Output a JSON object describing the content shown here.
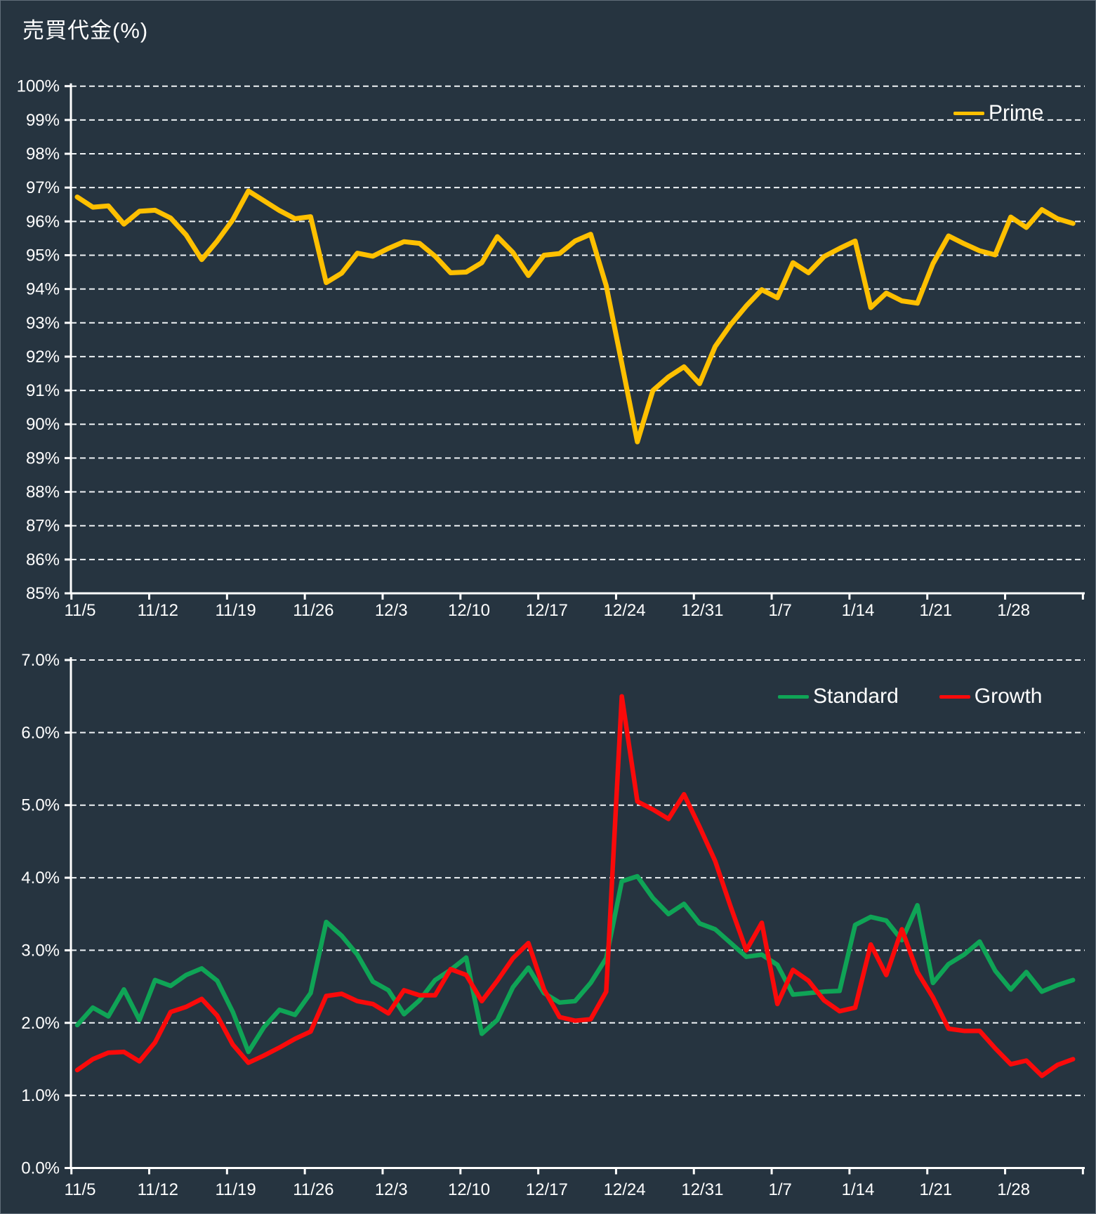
{
  "title": "売買代金(%)",
  "legends": {
    "prime": "Prime",
    "standard": "Standard",
    "growth": "Growth"
  },
  "style": {
    "background_color": "#263440",
    "text_color": "#ffffff",
    "gridline_color": "#edf1f4",
    "axis_color": "#ffffff",
    "prime_color": "#FFC000",
    "standard_color": "#0FA456",
    "growth_color": "#FA0A0A"
  },
  "chart_data": [
    {
      "id": "prime-chart",
      "type": "line",
      "title": "売買代金(%)",
      "legend_entries": [
        {
          "label": "Prime",
          "color": "#FFC000"
        }
      ],
      "legend_position": "top-right",
      "grid": true,
      "x_tick_labels": [
        "11/5",
        "11/12",
        "11/19",
        "11/26",
        "12/3",
        "12/10",
        "12/17",
        "12/24",
        "12/31",
        "1/7",
        "1/14",
        "1/21",
        "1/28"
      ],
      "points_per_tick": 5,
      "y_axis": {
        "min": 85,
        "max": 100,
        "step": 1,
        "labels_top_down": [
          "100%",
          "99%",
          "98%",
          "97%",
          "96%",
          "95%",
          "94%",
          "93%",
          "92%",
          "91%",
          "90%",
          "89%",
          "88%",
          "87%",
          "86%",
          "85%"
        ]
      },
      "ylim": [
        85,
        100
      ],
      "series": [
        {
          "name": "Prime",
          "color": "#FFC000",
          "values": [
            96.72,
            96.42,
            96.46,
            95.92,
            96.3,
            96.33,
            96.1,
            95.6,
            94.87,
            95.42,
            96.05,
            96.9,
            96.61,
            96.32,
            96.08,
            96.14,
            94.19,
            94.47,
            95.06,
            94.97,
            95.2,
            95.4,
            95.35,
            94.97,
            94.48,
            94.5,
            94.78,
            95.55,
            95.08,
            94.4,
            95.0,
            95.05,
            95.42,
            95.62,
            94.1,
            91.8,
            89.48,
            91.0,
            91.4,
            91.7,
            91.2,
            92.3,
            92.95,
            93.5,
            93.98,
            93.74,
            94.78,
            94.48,
            94.96,
            95.2,
            95.42,
            93.45,
            93.88,
            93.65,
            93.58,
            94.75,
            95.57,
            95.34,
            95.13,
            95.01,
            96.13,
            95.82,
            96.35,
            96.08,
            95.94
          ]
        }
      ]
    },
    {
      "id": "standard-growth-chart",
      "type": "line",
      "title": "",
      "legend_entries": [
        {
          "label": "Standard",
          "color": "#0FA456"
        },
        {
          "label": "Growth",
          "color": "#FA0A0A"
        }
      ],
      "legend_position": "top-right",
      "grid": true,
      "x_tick_labels": [
        "11/5",
        "11/12",
        "11/19",
        "11/26",
        "12/3",
        "12/10",
        "12/17",
        "12/24",
        "12/31",
        "1/7",
        "1/14",
        "1/21",
        "1/28"
      ],
      "points_per_tick": 5,
      "y_axis": {
        "min": 0,
        "max": 7,
        "step": 1,
        "labels_top_down": [
          "7.0%",
          "6.0%",
          "5.0%",
          "4.0%",
          "3.0%",
          "2.0%",
          "1.0%",
          "0.0%"
        ]
      },
      "ylim": [
        0,
        7
      ],
      "series": [
        {
          "name": "Standard",
          "color": "#0FA456",
          "values": [
            1.97,
            2.21,
            2.09,
            2.46,
            2.04,
            2.59,
            2.51,
            2.66,
            2.75,
            2.58,
            2.15,
            1.6,
            1.94,
            2.18,
            2.11,
            2.41,
            3.39,
            3.2,
            2.94,
            2.57,
            2.45,
            2.12,
            2.31,
            2.59,
            2.73,
            2.9,
            1.85,
            2.04,
            2.49,
            2.76,
            2.41,
            2.28,
            2.3,
            2.55,
            2.89,
            3.95,
            4.02,
            3.72,
            3.5,
            3.64,
            3.37,
            3.29,
            3.1,
            2.91,
            2.94,
            2.8,
            2.39,
            2.41,
            2.43,
            2.44,
            3.35,
            3.46,
            3.41,
            3.14,
            3.62,
            2.55,
            2.81,
            2.94,
            3.12,
            2.72,
            2.46,
            2.7,
            2.43,
            2.52,
            2.59
          ]
        },
        {
          "name": "Growth",
          "color": "#FA0A0A",
          "values": [
            1.35,
            1.5,
            1.59,
            1.6,
            1.47,
            1.73,
            2.15,
            2.22,
            2.33,
            2.1,
            1.7,
            1.45,
            1.55,
            1.66,
            1.78,
            1.88,
            2.37,
            2.4,
            2.3,
            2.26,
            2.13,
            2.45,
            2.38,
            2.38,
            2.74,
            2.66,
            2.3,
            2.58,
            2.89,
            3.1,
            2.46,
            2.08,
            2.03,
            2.05,
            2.43,
            6.5,
            5.05,
            4.94,
            4.81,
            5.15,
            4.7,
            4.23,
            3.6,
            3.0,
            3.38,
            2.26,
            2.73,
            2.58,
            2.31,
            2.16,
            2.21,
            3.08,
            2.66,
            3.29,
            2.7,
            2.35,
            1.92,
            1.89,
            1.89,
            1.65,
            1.43,
            1.48,
            1.27,
            1.42,
            1.5
          ]
        }
      ]
    }
  ]
}
